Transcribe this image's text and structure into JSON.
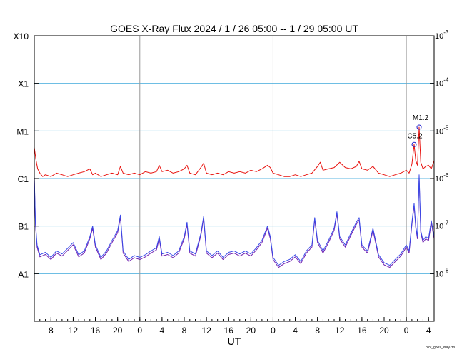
{
  "chart_data": {
    "type": "line",
    "title": "GOES X-Ray Flux   2024  /  1 / 26   05:00 --  1 / 29   05:00   UT",
    "xlabel": "UT",
    "ylabel": "",
    "credit": "plot_goes_xray2m",
    "y_scale": "log",
    "ylim": [
      1e-09,
      0.001
    ],
    "xlim_hours": [
      0,
      72
    ],
    "x_start_label": "2024-01-26 05:00 UT",
    "x_end_label": "2024-01-29 05:00 UT",
    "x_tick_labels": [
      "8",
      "12",
      "16",
      "20",
      "0",
      "4",
      "8",
      "12",
      "16",
      "20",
      "0",
      "4",
      "8",
      "12",
      "16",
      "20",
      "0",
      "4"
    ],
    "x_tick_hours": [
      3,
      7,
      11,
      15,
      19,
      23,
      27,
      31,
      35,
      39,
      43,
      47,
      51,
      55,
      59,
      63,
      67,
      71
    ],
    "day_boundaries_hours": [
      19,
      43,
      67
    ],
    "flare_classes": [
      {
        "label": "X10",
        "flux": 0.001
      },
      {
        "label": "X1",
        "flux": 0.0001
      },
      {
        "label": "M1",
        "flux": 1e-05
      },
      {
        "label": "C1",
        "flux": 1e-06
      },
      {
        "label": "B1",
        "flux": 1e-07
      },
      {
        "label": "A1",
        "flux": 1e-08
      }
    ],
    "right_axis_labels": [
      {
        "mant": "10",
        "exp": "-3",
        "flux": 0.001
      },
      {
        "mant": "10",
        "exp": "-4",
        "flux": 0.0001
      },
      {
        "mant": "10",
        "exp": "-5",
        "flux": 1e-05
      },
      {
        "mant": "10",
        "exp": "-6",
        "flux": 1e-06
      },
      {
        "mant": "10",
        "exp": "-7",
        "flux": 1e-07
      },
      {
        "mant": "10",
        "exp": "-8",
        "flux": 1e-08
      }
    ],
    "annotations": [
      {
        "label": "C5.2",
        "hour": 68.4,
        "flux": 5.2e-06
      },
      {
        "label": "M1.2",
        "hour": 69.3,
        "flux": 1.2e-05
      }
    ],
    "colors": {
      "long_channel": "#e8130f",
      "short_channel": "#3a4be8",
      "short_channel_secondary": "#7020b0",
      "grid": "#5ab4e0",
      "day_line": "#999999",
      "marker": "#1a1acc"
    },
    "series": [
      {
        "name": "",
        "channel": "long",
        "points": [
          [
            0,
            4.5e-06
          ],
          [
            0.3,
            2.5e-06
          ],
          [
            0.6,
            1.6e-06
          ],
          [
            1,
            1.3e-06
          ],
          [
            1.5,
            1.1e-06
          ],
          [
            2,
            1.2e-06
          ],
          [
            3,
            1.1e-06
          ],
          [
            4,
            1.3e-06
          ],
          [
            5,
            1.2e-06
          ],
          [
            6,
            1.1e-06
          ],
          [
            7,
            1.2e-06
          ],
          [
            8,
            1.3e-06
          ],
          [
            9,
            1.4e-06
          ],
          [
            10,
            1.6e-06
          ],
          [
            10.5,
            1.2e-06
          ],
          [
            11,
            1.3e-06
          ],
          [
            12,
            1.1e-06
          ],
          [
            13,
            1.2e-06
          ],
          [
            14,
            1.3e-06
          ],
          [
            15,
            1.2e-06
          ],
          [
            15.5,
            1.8e-06
          ],
          [
            16,
            1.3e-06
          ],
          [
            17,
            1.2e-06
          ],
          [
            18,
            1.3e-06
          ],
          [
            19,
            1.2e-06
          ],
          [
            20,
            1.4e-06
          ],
          [
            21,
            1.3e-06
          ],
          [
            22,
            1.4e-06
          ],
          [
            22.5,
            1.9e-06
          ],
          [
            23,
            1.4e-06
          ],
          [
            24,
            1.5e-06
          ],
          [
            25,
            1.3e-06
          ],
          [
            26,
            1.4e-06
          ],
          [
            27,
            1.6e-06
          ],
          [
            27.5,
            1.9e-06
          ],
          [
            28,
            1.3e-06
          ],
          [
            29,
            1.2e-06
          ],
          [
            30,
            1.7e-06
          ],
          [
            30.5,
            2.1e-06
          ],
          [
            31,
            1.3e-06
          ],
          [
            32,
            1.2e-06
          ],
          [
            33,
            1.3e-06
          ],
          [
            34,
            1.2e-06
          ],
          [
            35,
            1.4e-06
          ],
          [
            36,
            1.3e-06
          ],
          [
            37,
            1.4e-06
          ],
          [
            38,
            1.3e-06
          ],
          [
            39,
            1.5e-06
          ],
          [
            40,
            1.4e-06
          ],
          [
            41,
            1.6e-06
          ],
          [
            42,
            1.9e-06
          ],
          [
            42.5,
            1.7e-06
          ],
          [
            43,
            1.3e-06
          ],
          [
            44,
            1.2e-06
          ],
          [
            45,
            1.1e-06
          ],
          [
            46,
            1.1e-06
          ],
          [
            47,
            1.2e-06
          ],
          [
            48,
            1.1e-06
          ],
          [
            49,
            1.2e-06
          ],
          [
            50,
            1.3e-06
          ],
          [
            51,
            1.8e-06
          ],
          [
            51.5,
            2.2e-06
          ],
          [
            52,
            1.5e-06
          ],
          [
            53,
            1.6e-06
          ],
          [
            54,
            1.7e-06
          ],
          [
            55,
            2.2e-06
          ],
          [
            56,
            1.7e-06
          ],
          [
            57,
            1.6e-06
          ],
          [
            58,
            1.8e-06
          ],
          [
            58.5,
            2.3e-06
          ],
          [
            59,
            1.6e-06
          ],
          [
            60,
            1.5e-06
          ],
          [
            61,
            1.8e-06
          ],
          [
            62,
            1.3e-06
          ],
          [
            63,
            1.2e-06
          ],
          [
            64,
            1.1e-06
          ],
          [
            65,
            1.2e-06
          ],
          [
            66,
            1.3e-06
          ],
          [
            67,
            1.5e-06
          ],
          [
            67.5,
            1.3e-06
          ],
          [
            68,
            2e-06
          ],
          [
            68.4,
            5.2e-06
          ],
          [
            68.7,
            2.4e-06
          ],
          [
            69,
            1.9e-06
          ],
          [
            69.3,
            1.2e-05
          ],
          [
            69.6,
            2.2e-06
          ],
          [
            70,
            1.6e-06
          ],
          [
            70.5,
            1.8e-06
          ],
          [
            71,
            1.9e-06
          ],
          [
            71.5,
            1.6e-06
          ],
          [
            72,
            2.4e-06
          ]
        ]
      },
      {
        "name": "",
        "channel": "short",
        "points": [
          [
            0,
            1.1e-06
          ],
          [
            0.2,
            1.2e-07
          ],
          [
            0.5,
            4e-08
          ],
          [
            1,
            2.5e-08
          ],
          [
            2,
            2.8e-08
          ],
          [
            3,
            2.2e-08
          ],
          [
            4,
            3e-08
          ],
          [
            5,
            2.6e-08
          ],
          [
            6,
            3.4e-08
          ],
          [
            7,
            4.5e-08
          ],
          [
            8,
            2.5e-08
          ],
          [
            9,
            3e-08
          ],
          [
            10,
            6e-08
          ],
          [
            10.5,
            1e-07
          ],
          [
            11,
            4e-08
          ],
          [
            12,
            2.2e-08
          ],
          [
            13,
            3e-08
          ],
          [
            14,
            5e-08
          ],
          [
            15,
            8e-08
          ],
          [
            15.5,
            1.7e-07
          ],
          [
            16,
            3e-08
          ],
          [
            17,
            2e-08
          ],
          [
            18,
            2.4e-08
          ],
          [
            19,
            2.2e-08
          ],
          [
            20,
            2.5e-08
          ],
          [
            21,
            3e-08
          ],
          [
            22,
            3.5e-08
          ],
          [
            22.5,
            6e-08
          ],
          [
            23,
            2.6e-08
          ],
          [
            24,
            2.8e-08
          ],
          [
            25,
            2.4e-08
          ],
          [
            26,
            3e-08
          ],
          [
            27,
            6e-08
          ],
          [
            27.5,
            1.2e-07
          ],
          [
            28,
            3e-08
          ],
          [
            29,
            2.6e-08
          ],
          [
            30,
            7e-08
          ],
          [
            30.5,
            1.6e-07
          ],
          [
            31,
            3e-08
          ],
          [
            32,
            2.4e-08
          ],
          [
            33,
            3e-08
          ],
          [
            34,
            2.2e-08
          ],
          [
            35,
            2.8e-08
          ],
          [
            36,
            3e-08
          ],
          [
            37,
            2.6e-08
          ],
          [
            38,
            3e-08
          ],
          [
            39,
            2.6e-08
          ],
          [
            40,
            3.5e-08
          ],
          [
            41,
            5e-08
          ],
          [
            42,
            1e-07
          ],
          [
            42.5,
            6e-08
          ],
          [
            43,
            2.2e-08
          ],
          [
            44,
            1.5e-08
          ],
          [
            45,
            1.8e-08
          ],
          [
            46,
            2e-08
          ],
          [
            47,
            2.5e-08
          ],
          [
            48,
            1.8e-08
          ],
          [
            49,
            3e-08
          ],
          [
            50,
            4e-08
          ],
          [
            50.5,
            1.5e-07
          ],
          [
            51,
            5e-08
          ],
          [
            52,
            3e-08
          ],
          [
            53,
            5e-08
          ],
          [
            54,
            9e-08
          ],
          [
            54.5,
            2e-07
          ],
          [
            55,
            6e-08
          ],
          [
            56,
            4e-08
          ],
          [
            57,
            7e-08
          ],
          [
            58,
            1.2e-07
          ],
          [
            58.5,
            1.5e-07
          ],
          [
            59,
            4e-08
          ],
          [
            60,
            3e-08
          ],
          [
            61,
            9e-08
          ],
          [
            62,
            2.5e-08
          ],
          [
            63,
            1.7e-08
          ],
          [
            64,
            1.5e-08
          ],
          [
            65,
            2e-08
          ],
          [
            66,
            2.6e-08
          ],
          [
            67,
            4e-08
          ],
          [
            67.5,
            3e-08
          ],
          [
            68,
            1.2e-07
          ],
          [
            68.4,
            3e-07
          ],
          [
            68.7,
            1e-07
          ],
          [
            69,
            6e-08
          ],
          [
            69.3,
            1.2e-06
          ],
          [
            69.6,
            8e-08
          ],
          [
            70,
            5e-08
          ],
          [
            70.5,
            6e-08
          ],
          [
            71,
            5.5e-08
          ],
          [
            71.5,
            1.3e-07
          ],
          [
            72,
            6e-08
          ]
        ]
      }
    ]
  }
}
